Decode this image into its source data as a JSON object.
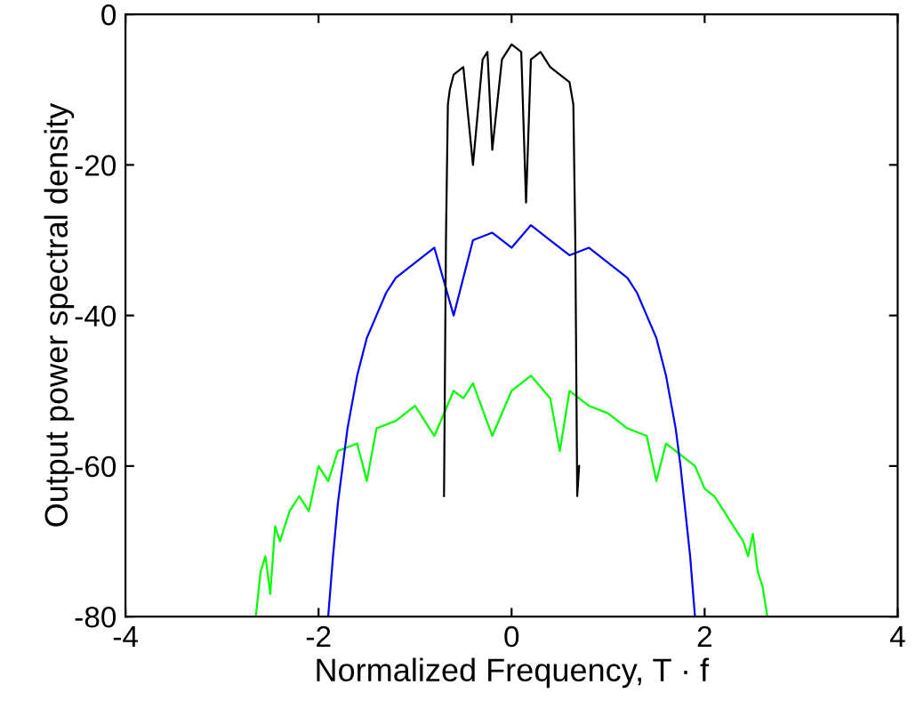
{
  "chart_data": {
    "type": "line",
    "xlabel": "Normalized Frequency, T · f",
    "ylabel": "Output power spectral density",
    "xlim": [
      -4,
      4
    ],
    "ylim": [
      -80,
      0
    ],
    "xticks": [
      -4,
      -2,
      0,
      2,
      4
    ],
    "yticks": [
      -80,
      -60,
      -40,
      -20,
      0
    ],
    "grid": false,
    "legend": false,
    "marker": "none",
    "line_style": "solid",
    "series": [
      {
        "color": "#00ff00",
        "x": [
          -2.65,
          -2.6,
          -2.55,
          -2.5,
          -2.45,
          -2.4,
          -2.3,
          -2.2,
          -2.1,
          -2.0,
          -1.9,
          -1.8,
          -1.6,
          -1.5,
          -1.4,
          -1.2,
          -1.0,
          -0.8,
          -0.6,
          -0.5,
          -0.4,
          -0.2,
          0.0,
          0.2,
          0.4,
          0.5,
          0.6,
          0.8,
          1.0,
          1.2,
          1.4,
          1.5,
          1.6,
          1.8,
          1.9,
          2.0,
          2.1,
          2.2,
          2.3,
          2.4,
          2.45,
          2.5,
          2.55,
          2.6,
          2.65
        ],
        "values": [
          -80,
          -74,
          -72,
          -77,
          -68,
          -70,
          -66,
          -64,
          -66,
          -60,
          -62,
          -58,
          -57,
          -62,
          -55,
          -54,
          -52,
          -56,
          -50,
          -51,
          -49,
          -56,
          -50,
          -48,
          -51,
          -58,
          -50,
          -52,
          -53,
          -55,
          -56,
          -62,
          -57,
          -59,
          -60,
          -63,
          -64,
          -66,
          -68,
          -70,
          -72,
          -69,
          -74,
          -76,
          -80
        ]
      },
      {
        "color": "#0000ff",
        "x": [
          -1.9,
          -1.85,
          -1.8,
          -1.75,
          -1.7,
          -1.6,
          -1.5,
          -1.4,
          -1.3,
          -1.2,
          -1.0,
          -0.8,
          -0.6,
          -0.4,
          -0.2,
          0.0,
          0.2,
          0.4,
          0.6,
          0.8,
          1.0,
          1.2,
          1.3,
          1.4,
          1.5,
          1.6,
          1.7,
          1.75,
          1.8,
          1.85,
          1.9
        ],
        "values": [
          -80,
          -72,
          -65,
          -60,
          -55,
          -48,
          -43,
          -40,
          -37,
          -35,
          -33,
          -31,
          -40,
          -30,
          -29,
          -31,
          -28,
          -30,
          -32,
          -31,
          -33,
          -35,
          -37,
          -40,
          -43,
          -48,
          -55,
          -60,
          -66,
          -72,
          -80
        ]
      },
      {
        "color": "#000000",
        "x": [
          -0.7,
          -0.68,
          -0.66,
          -0.64,
          -0.6,
          -0.5,
          -0.4,
          -0.3,
          -0.25,
          -0.2,
          -0.1,
          0.0,
          0.1,
          0.15,
          0.2,
          0.3,
          0.4,
          0.5,
          0.6,
          0.64,
          0.66,
          0.68,
          0.7
        ],
        "values": [
          -64,
          -30,
          -12,
          -10,
          -8,
          -7,
          -20,
          -6,
          -5,
          -18,
          -6,
          -4,
          -5,
          -25,
          -6,
          -5,
          -7,
          -8,
          -9,
          -12,
          -30,
          -64,
          -60
        ]
      }
    ]
  }
}
